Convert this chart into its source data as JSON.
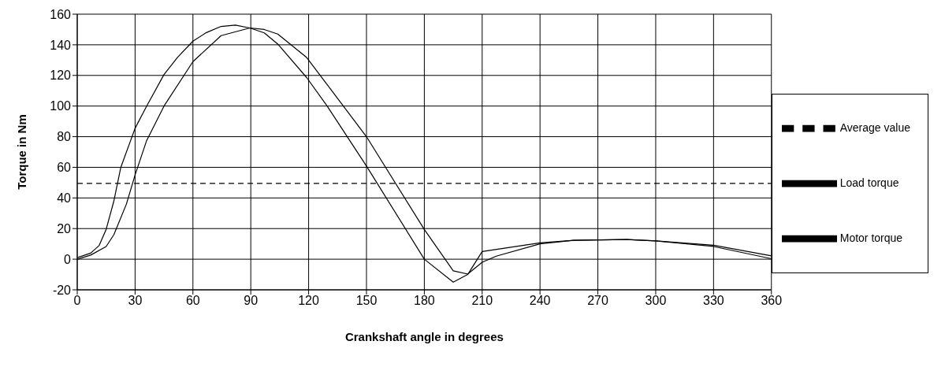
{
  "chart_data": {
    "type": "line",
    "xlabel": "Crankshaft angle in degrees",
    "ylabel": "Torque in Nm",
    "xlim": [
      0,
      360
    ],
    "xticks": [
      0,
      30,
      60,
      90,
      120,
      150,
      180,
      210,
      240,
      270,
      300,
      330,
      360
    ],
    "ylim": [
      -20,
      160
    ],
    "yticks": [
      -20,
      0,
      20,
      40,
      60,
      80,
      100,
      120,
      140,
      160
    ],
    "grid": true,
    "legend": "right",
    "marker": "none",
    "series": [
      {
        "name": "Load torque",
        "color": "#000000",
        "line_style": "solid",
        "x": [
          0,
          7,
          11.4,
          15,
          19,
          22.6,
          30,
          36,
          45,
          52,
          60,
          67,
          74.6,
          82,
          89.5,
          97,
          104,
          119,
          129.6,
          150,
          180,
          195,
          202.5,
          210,
          240,
          257.5,
          270,
          285,
          300,
          330,
          360
        ],
        "values": [
          1,
          4,
          9,
          19.5,
          38,
          60,
          85.5,
          100,
          120.6,
          131.8,
          142.4,
          148,
          152,
          152.9,
          151,
          147.8,
          140.5,
          118.6,
          100,
          60.8,
          0,
          -15,
          -10,
          5,
          10.7,
          12.3,
          12.6,
          12.8,
          12,
          9.1,
          2.2
        ]
      },
      {
        "name": "Motor torque",
        "color": "#000000",
        "line_style": "solid",
        "x": [
          0,
          7,
          15,
          19,
          25.5,
          30,
          36,
          45,
          60,
          74.6,
          89.5,
          97,
          104,
          119,
          129.6,
          150,
          180,
          195,
          202.5,
          210,
          217.3,
          240,
          257.5,
          270,
          285,
          300,
          330,
          360
        ],
        "values": [
          0,
          2.7,
          8.3,
          16,
          36,
          55,
          77.5,
          100,
          129,
          146,
          151,
          150,
          147,
          131.7,
          114,
          80,
          19.4,
          -7.6,
          -9.7,
          -2,
          2,
          10,
          12.3,
          12.6,
          12.8,
          12,
          8.3,
          0.3
        ]
      },
      {
        "name": "Average value",
        "color": "#000000",
        "line_style": "dashed",
        "x": [
          0,
          360
        ],
        "values": [
          49.5,
          49.5
        ]
      }
    ]
  }
}
